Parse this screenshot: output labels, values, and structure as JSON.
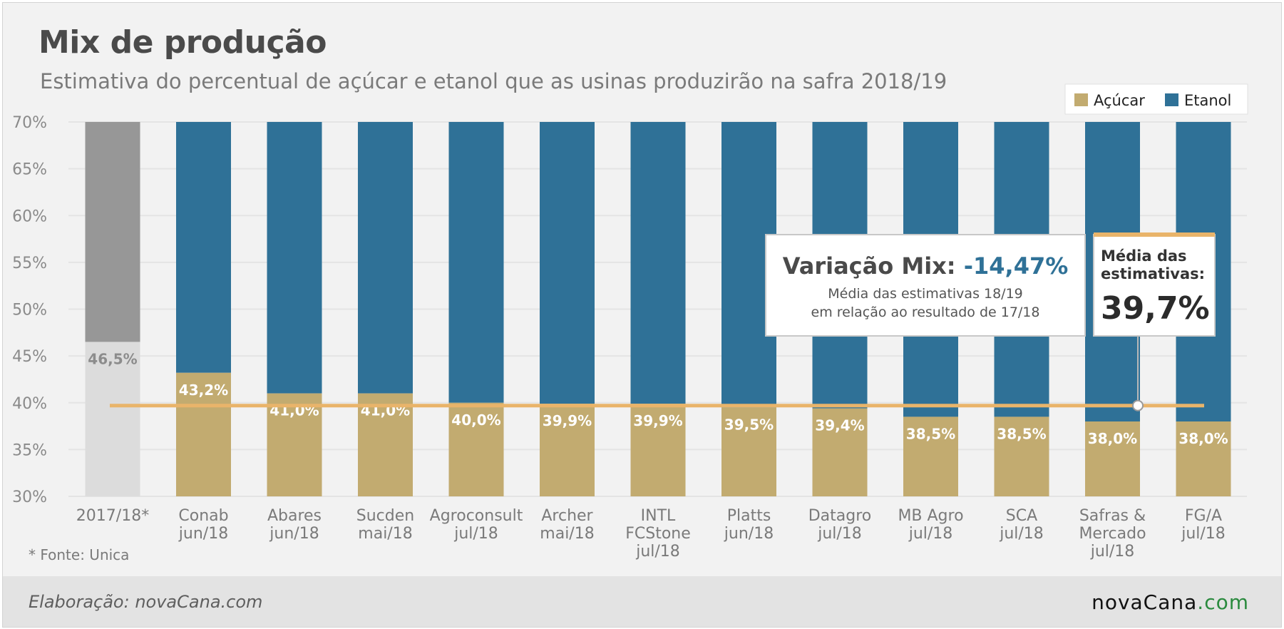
{
  "header": {
    "title": "Mix de produção",
    "subtitle": "Estimativa do percentual de açúcar e etanol que as usinas produzirão na safra 2018/19"
  },
  "legend": {
    "items": [
      {
        "label": "Açúcar",
        "color": "#c2ab70"
      },
      {
        "label": "Etanol",
        "color": "#2f7197"
      }
    ]
  },
  "chart_data": {
    "type": "bar",
    "stacked": true,
    "ylim": [
      30,
      70
    ],
    "yticks": [
      "30%",
      "35%",
      "40%",
      "45%",
      "50%",
      "55%",
      "60%",
      "65%",
      "70%"
    ],
    "categories": [
      [
        "2017/18*"
      ],
      [
        "Conab",
        "jun/18"
      ],
      [
        "Abares",
        "jun/18"
      ],
      [
        "Sucden",
        "mai/18"
      ],
      [
        "Agroconsult",
        "jul/18"
      ],
      [
        "Archer",
        "mai/18"
      ],
      [
        "INTL",
        "FCStone",
        "jul/18"
      ],
      [
        "Platts",
        "jun/18"
      ],
      [
        "Datagro",
        "jul/18"
      ],
      [
        "MB Agro",
        "jul/18"
      ],
      [
        "SCA",
        "jul/18"
      ],
      [
        "Safras &",
        "Mercado",
        "jul/18"
      ],
      [
        "FG/A",
        "jul/18"
      ]
    ],
    "series": [
      {
        "name": "Açúcar",
        "values": [
          46.5,
          43.2,
          41.0,
          41.0,
          40.0,
          39.9,
          39.9,
          39.5,
          39.4,
          38.5,
          38.5,
          38.0,
          38.0
        ],
        "color": "#c2ab70"
      },
      {
        "name": "Etanol",
        "color": "#2f7197"
      }
    ],
    "data_labels": [
      "46,5%",
      "43,2%",
      "41,0%",
      "41,0%",
      "40,0%",
      "39,9%",
      "39,9%",
      "39,5%",
      "39,4%",
      "38,5%",
      "38,5%",
      "38,0%",
      "38,0%"
    ],
    "reference_2017_colors": {
      "sugar": "#dcdcdc",
      "ethanol": "#979797"
    },
    "average_line": {
      "value": 39.7,
      "color": "#e9b46a"
    },
    "grid": true,
    "legend_position": "top-right"
  },
  "callouts": {
    "variation": {
      "label": "Variação Mix:",
      "value": "-14,47%",
      "line1": "Média das estimativas 18/19",
      "line2": "em relação ao resultado de 17/18"
    },
    "average": {
      "label_line1": "Média das",
      "label_line2": "estimativas:",
      "value": "39,7%"
    }
  },
  "source_note": "* Fonte: Unica",
  "footer": {
    "credit": "Elaboração: novaCana.com",
    "brand_main": "novaCana",
    "brand_suffix": ".com"
  }
}
